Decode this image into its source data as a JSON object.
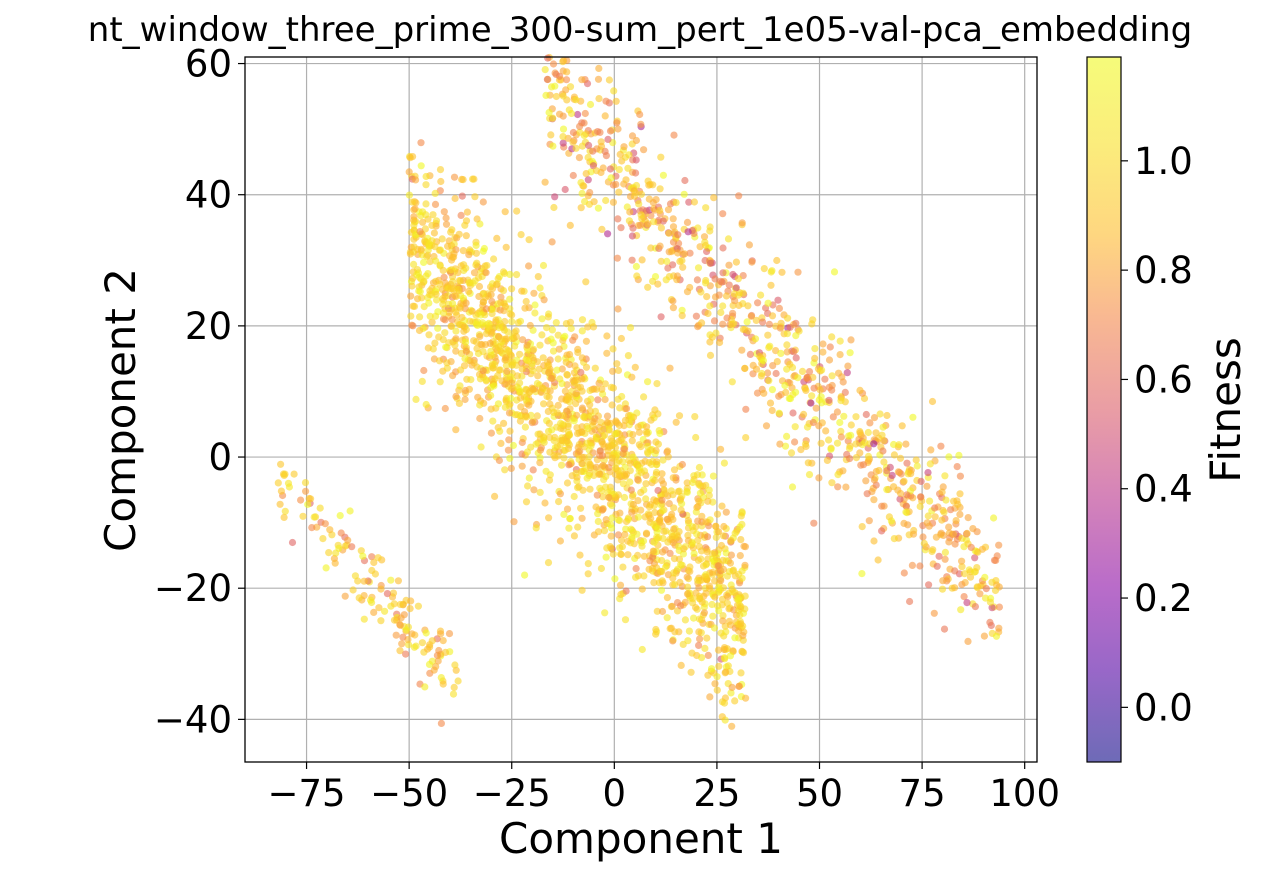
{
  "chart_data": {
    "type": "scatter",
    "title": "nt_window_three_prime_300-sum_pert_1e05-val-pca_embedding",
    "xlabel": "Component 1",
    "ylabel": "Component 2",
    "xlim": [
      -90,
      103
    ],
    "ylim": [
      -46.5,
      61
    ],
    "xticks": [
      -75,
      -50,
      -25,
      0,
      25,
      50,
      75,
      100
    ],
    "xtick_labels": [
      "−75",
      "−50",
      "−25",
      "0",
      "25",
      "50",
      "75",
      "100"
    ],
    "yticks": [
      -40,
      -20,
      0,
      20,
      40,
      60
    ],
    "ytick_labels": [
      "−40",
      "−20",
      "0",
      "20",
      "40",
      "60"
    ],
    "grid": true,
    "colorbar": {
      "label": "Fitness",
      "colormap": "plasma",
      "vmin": -0.1,
      "vmax": 1.19,
      "ticks": [
        0.0,
        0.2,
        0.4,
        0.6,
        0.8,
        1.0
      ],
      "tick_labels": [
        "0.0",
        "0.2",
        "0.4",
        "0.6",
        "0.8",
        "1.0"
      ]
    },
    "marker_alpha": 0.6,
    "clusters": [
      {
        "name": "",
        "x_range": [
          -50,
          32
        ],
        "slope": -0.68,
        "intercept": -2,
        "spread": 8,
        "count": 1800,
        "fitness_mean": 0.95,
        "fitness_sd": 0.12
      },
      {
        "name": "",
        "x_range": [
          -17,
          94
        ],
        "slope": -0.68,
        "intercept": 43,
        "spread": 6,
        "count": 900,
        "fitness_mean": 0.85,
        "fitness_sd": 0.18
      },
      {
        "name": "",
        "x_range": [
          -82,
          -38
        ],
        "slope": -0.69,
        "intercept": -60,
        "spread": 3,
        "count": 150,
        "fitness_mean": 0.92,
        "fitness_sd": 0.14
      }
    ]
  }
}
